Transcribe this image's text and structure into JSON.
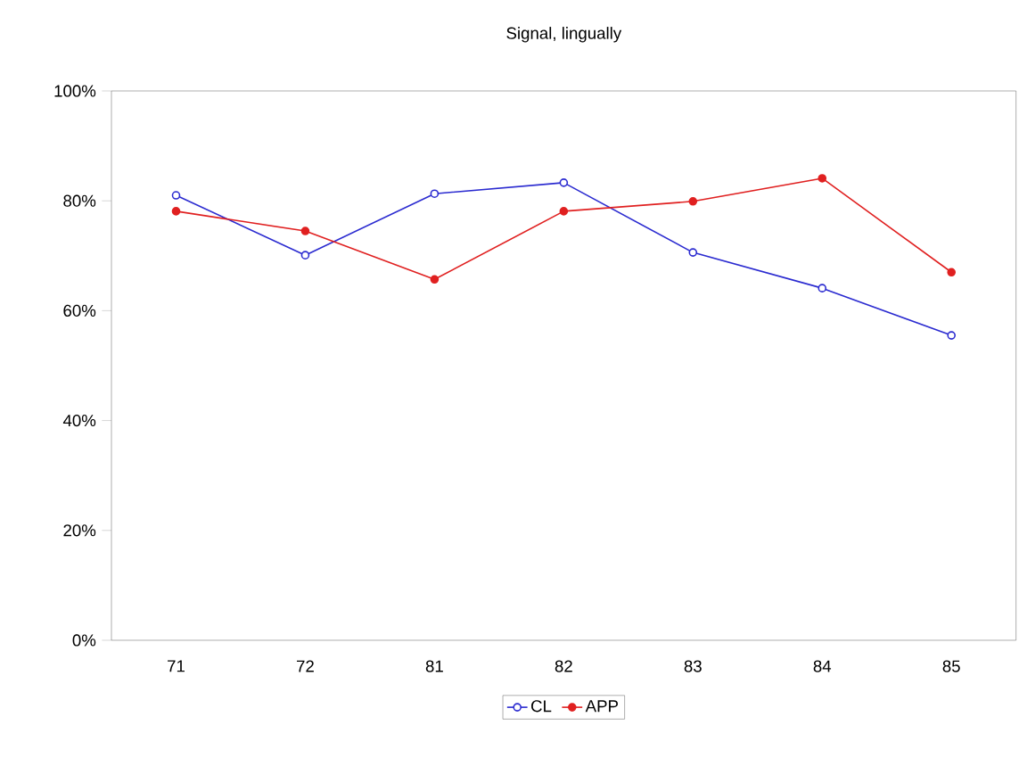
{
  "chart_data": {
    "type": "line",
    "title": "Signal, lingually",
    "categories": [
      "71",
      "72",
      "81",
      "82",
      "83",
      "84",
      "85"
    ],
    "series": [
      {
        "name": "CL",
        "color": "#2b2bd0",
        "values": [
          81.0,
          70.1,
          81.3,
          83.3,
          70.6,
          64.1,
          55.5
        ]
      },
      {
        "name": "APP",
        "color": "#e02020",
        "values": [
          78.1,
          74.5,
          65.7,
          78.1,
          79.9,
          84.1,
          67.0
        ]
      }
    ],
    "ylim": [
      0,
      100
    ],
    "yticks": [
      {
        "value": 0,
        "label": "0%"
      },
      {
        "value": 20,
        "label": "20%"
      },
      {
        "value": 40,
        "label": "40%"
      },
      {
        "value": 60,
        "label": "60%"
      },
      {
        "value": 80,
        "label": "80%"
      },
      {
        "value": 100,
        "label": "100%"
      }
    ],
    "grid": false,
    "legend": "bottom",
    "marker": "circle",
    "line_style": "solid"
  }
}
